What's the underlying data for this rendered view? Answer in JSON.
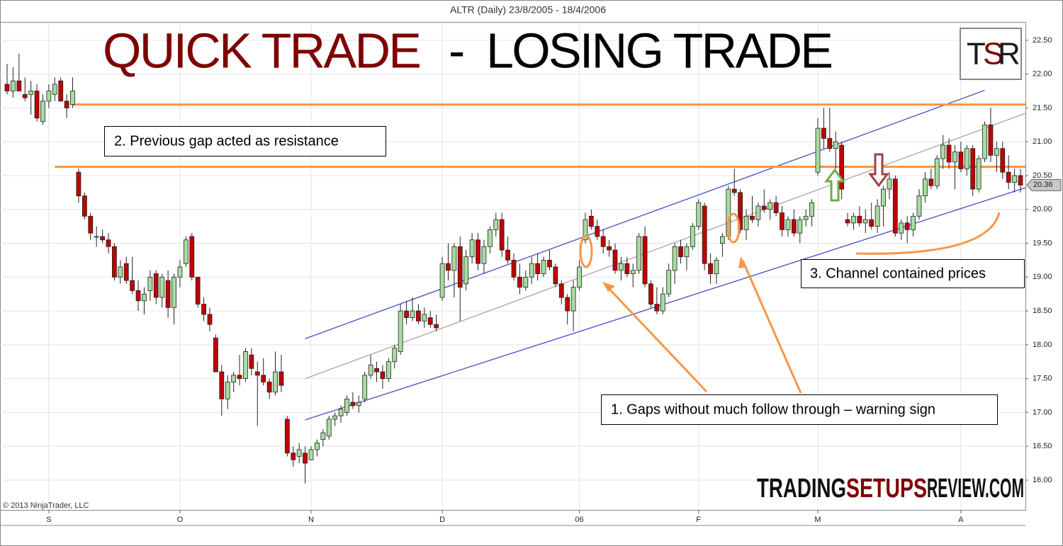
{
  "chart_data": {
    "type": "candlestick",
    "title": "ALTR (Daily)  23/8/2005 - 18/4/2006",
    "headline": {
      "left": "QUICK TRADE",
      "dash": "-",
      "right": "LOSING TRADE"
    },
    "logo": [
      "T",
      "S",
      "R"
    ],
    "watermark": [
      "TRADING",
      "SETUPS",
      "REVIEW.COM"
    ],
    "copyright": "© 2013 NinjaTrader, LLC",
    "annotations": [
      "2. Previous gap acted as resistance",
      "1. Gaps without much follow through – warning sign",
      "3. Channel contained prices"
    ],
    "categories": [
      null,
      null,
      null,
      null,
      null,
      null,
      null,
      "S",
      null,
      null,
      null,
      null,
      null,
      null,
      null,
      null,
      null,
      null,
      null,
      null,
      null,
      null,
      null,
      null,
      null,
      null,
      null,
      null,
      null,
      "O",
      null,
      null,
      null,
      null,
      null,
      null,
      null,
      null,
      null,
      null,
      null,
      null,
      null,
      null,
      null,
      null,
      null,
      null,
      null,
      null,
      null,
      "N",
      null,
      null,
      null,
      null,
      null,
      null,
      null,
      null,
      null,
      null,
      null,
      null,
      null,
      null,
      null,
      null,
      null,
      null,
      null,
      null,
      null,
      "D",
      null,
      null,
      null,
      null,
      null,
      null,
      null,
      null,
      null,
      null,
      null,
      null,
      null,
      null,
      null,
      null,
      null,
      null,
      null,
      null,
      null,
      null,
      "06",
      null,
      null,
      null,
      null,
      null,
      null,
      null,
      null,
      null,
      null,
      null,
      null,
      null,
      null,
      null,
      null,
      null,
      null,
      null,
      "F",
      null,
      null,
      null,
      null,
      null,
      null,
      null,
      null,
      null,
      null,
      null,
      null,
      null,
      null,
      null,
      null,
      null,
      null,
      null,
      "M",
      null,
      null,
      null,
      null,
      null,
      null,
      null,
      null,
      null,
      null,
      null,
      null,
      null,
      null,
      null,
      null,
      null,
      null,
      null,
      null,
      null,
      null,
      null,
      "A",
      null,
      null,
      null,
      null,
      null,
      null,
      null,
      null,
      null,
      null
    ],
    "ohlc": [
      [
        21.85,
        22.15,
        21.7,
        21.75
      ],
      [
        21.75,
        22.1,
        21.65,
        21.9
      ],
      [
        21.9,
        22.3,
        21.8,
        21.75
      ],
      [
        21.7,
        21.95,
        21.6,
        21.65
      ],
      [
        21.7,
        21.9,
        21.4,
        21.75
      ],
      [
        21.75,
        21.85,
        21.3,
        21.35
      ],
      [
        21.3,
        21.7,
        21.25,
        21.6
      ],
      [
        21.6,
        21.85,
        21.5,
        21.75
      ],
      [
        21.7,
        21.95,
        21.6,
        21.85
      ],
      [
        21.9,
        21.95,
        21.6,
        21.6
      ],
      [
        21.6,
        21.7,
        21.35,
        21.5
      ],
      [
        21.55,
        21.95,
        21.5,
        21.75
      ],
      [
        20.55,
        20.6,
        20.1,
        20.2
      ],
      [
        20.2,
        20.25,
        19.85,
        19.9
      ],
      [
        19.9,
        19.95,
        19.55,
        19.65
      ],
      [
        19.6,
        19.75,
        19.45,
        19.6
      ],
      [
        19.6,
        19.7,
        19.5,
        19.55
      ],
      [
        19.55,
        19.65,
        19.35,
        19.45
      ],
      [
        19.45,
        19.5,
        18.95,
        19.0
      ],
      [
        19.0,
        19.25,
        18.9,
        19.15
      ],
      [
        19.2,
        19.3,
        18.9,
        18.95
      ],
      [
        18.95,
        19.3,
        18.75,
        18.8
      ],
      [
        18.8,
        18.95,
        18.5,
        18.65
      ],
      [
        18.65,
        18.85,
        18.45,
        18.75
      ],
      [
        18.8,
        19.1,
        18.65,
        19.0
      ],
      [
        19.05,
        19.1,
        18.6,
        18.7
      ],
      [
        18.7,
        19.05,
        18.55,
        19.0
      ],
      [
        18.95,
        19.1,
        18.4,
        18.55
      ],
      [
        18.55,
        19.05,
        18.3,
        19.0
      ],
      [
        19.0,
        19.25,
        18.85,
        19.15
      ],
      [
        19.2,
        19.6,
        19.15,
        19.55
      ],
      [
        19.6,
        19.65,
        18.95,
        19.0
      ],
      [
        19.0,
        19.0,
        18.55,
        18.6
      ],
      [
        18.6,
        18.7,
        18.35,
        18.45
      ],
      [
        18.45,
        18.55,
        18.2,
        18.3
      ],
      [
        18.1,
        18.15,
        17.6,
        17.6
      ],
      [
        17.6,
        17.7,
        16.95,
        17.2
      ],
      [
        17.2,
        17.55,
        17.05,
        17.45
      ],
      [
        17.45,
        17.6,
        17.3,
        17.55
      ],
      [
        17.55,
        17.85,
        17.4,
        17.5
      ],
      [
        17.5,
        17.95,
        17.45,
        17.9
      ],
      [
        17.85,
        17.95,
        17.55,
        17.65
      ],
      [
        17.6,
        17.75,
        16.8,
        17.55
      ],
      [
        17.55,
        17.8,
        17.4,
        17.45
      ],
      [
        17.45,
        17.5,
        17.2,
        17.3
      ],
      [
        17.3,
        17.9,
        17.25,
        17.6
      ],
      [
        17.6,
        17.85,
        17.3,
        17.4
      ],
      [
        16.9,
        16.95,
        16.35,
        16.4
      ],
      [
        16.4,
        16.5,
        16.2,
        16.3
      ],
      [
        16.35,
        16.55,
        16.25,
        16.45
      ],
      [
        16.4,
        16.5,
        15.95,
        16.25
      ],
      [
        16.3,
        16.5,
        16.3,
        16.45
      ],
      [
        16.45,
        16.6,
        16.35,
        16.55
      ],
      [
        16.6,
        16.75,
        16.5,
        16.7
      ],
      [
        16.65,
        16.95,
        16.6,
        16.9
      ],
      [
        16.9,
        17.0,
        16.8,
        16.95
      ],
      [
        16.95,
        17.1,
        16.85,
        17.05
      ],
      [
        17.0,
        17.25,
        16.95,
        17.2
      ],
      [
        17.15,
        17.3,
        17.05,
        17.1
      ],
      [
        17.1,
        17.25,
        17.0,
        17.15
      ],
      [
        17.2,
        17.6,
        17.15,
        17.55
      ],
      [
        17.55,
        17.85,
        17.5,
        17.7
      ],
      [
        17.65,
        17.75,
        17.45,
        17.6
      ],
      [
        17.6,
        17.7,
        17.35,
        17.5
      ],
      [
        17.5,
        17.8,
        17.45,
        17.75
      ],
      [
        17.75,
        18.0,
        17.65,
        17.95
      ],
      [
        17.9,
        18.6,
        17.85,
        18.5
      ],
      [
        18.5,
        18.65,
        18.3,
        18.4
      ],
      [
        18.4,
        18.7,
        18.35,
        18.5
      ],
      [
        18.5,
        18.6,
        18.3,
        18.35
      ],
      [
        18.35,
        18.55,
        18.25,
        18.45
      ],
      [
        18.4,
        18.5,
        18.25,
        18.3
      ],
      [
        18.3,
        18.45,
        18.2,
        18.25
      ],
      [
        18.7,
        19.3,
        18.65,
        19.2
      ],
      [
        19.2,
        19.5,
        18.95,
        19.1
      ],
      [
        19.1,
        19.5,
        18.7,
        19.45
      ],
      [
        19.45,
        19.6,
        18.35,
        18.85
      ],
      [
        18.9,
        19.4,
        18.8,
        19.3
      ],
      [
        19.3,
        19.65,
        19.2,
        19.55
      ],
      [
        19.55,
        19.65,
        19.1,
        19.2
      ],
      [
        19.2,
        19.55,
        19.05,
        19.45
      ],
      [
        19.45,
        19.75,
        19.35,
        19.7
      ],
      [
        19.7,
        19.95,
        19.6,
        19.85
      ],
      [
        19.85,
        19.95,
        19.3,
        19.4
      ],
      [
        19.4,
        19.6,
        19.2,
        19.25
      ],
      [
        19.25,
        19.35,
        18.95,
        19.0
      ],
      [
        19.0,
        19.2,
        18.75,
        18.85
      ],
      [
        18.85,
        19.1,
        18.8,
        19.0
      ],
      [
        19.0,
        19.3,
        18.9,
        19.2
      ],
      [
        19.2,
        19.35,
        18.95,
        19.05
      ],
      [
        19.05,
        19.3,
        19.0,
        19.25
      ],
      [
        19.25,
        19.4,
        19.1,
        19.15
      ],
      [
        19.15,
        19.2,
        18.85,
        18.9
      ],
      [
        18.9,
        18.95,
        18.6,
        18.7
      ],
      [
        18.7,
        18.75,
        18.3,
        18.5
      ],
      [
        18.5,
        18.95,
        18.2,
        18.85
      ],
      [
        18.85,
        19.25,
        18.8,
        19.15
      ],
      [
        19.55,
        19.95,
        19.5,
        19.85
      ],
      [
        19.9,
        20.0,
        19.7,
        19.75
      ],
      [
        19.75,
        19.85,
        19.55,
        19.6
      ],
      [
        19.6,
        19.7,
        19.35,
        19.45
      ],
      [
        19.45,
        19.55,
        19.3,
        19.4
      ],
      [
        19.4,
        19.5,
        19.05,
        19.1
      ],
      [
        19.1,
        19.3,
        18.95,
        19.2
      ],
      [
        19.2,
        19.3,
        19.0,
        19.05
      ],
      [
        19.05,
        19.2,
        18.85,
        19.1
      ],
      [
        19.1,
        19.65,
        19.05,
        19.6
      ],
      [
        19.6,
        19.75,
        18.85,
        18.9
      ],
      [
        18.9,
        18.95,
        18.55,
        18.6
      ],
      [
        18.6,
        18.85,
        18.45,
        18.5
      ],
      [
        18.5,
        18.85,
        18.45,
        18.75
      ],
      [
        18.75,
        19.2,
        18.7,
        19.1
      ],
      [
        19.1,
        19.5,
        18.9,
        19.45
      ],
      [
        19.45,
        19.55,
        19.2,
        19.3
      ],
      [
        19.3,
        19.5,
        19.1,
        19.45
      ],
      [
        19.45,
        19.8,
        19.4,
        19.75
      ],
      [
        19.75,
        20.15,
        19.7,
        20.1
      ],
      [
        20.05,
        20.1,
        19.1,
        19.2
      ],
      [
        19.2,
        19.35,
        18.9,
        19.05
      ],
      [
        19.05,
        19.3,
        18.9,
        19.25
      ],
      [
        19.5,
        19.65,
        19.3,
        19.6
      ],
      [
        19.6,
        20.35,
        19.55,
        20.3
      ],
      [
        20.3,
        20.6,
        20.2,
        20.25
      ],
      [
        20.25,
        20.3,
        19.65,
        19.7
      ],
      [
        19.7,
        20.0,
        19.55,
        19.9
      ],
      [
        19.9,
        20.2,
        19.8,
        19.85
      ],
      [
        19.85,
        20.1,
        19.75,
        20.05
      ],
      [
        20.05,
        20.3,
        19.95,
        20.0
      ],
      [
        20.0,
        20.15,
        19.85,
        20.1
      ],
      [
        20.1,
        20.2,
        19.9,
        19.95
      ],
      [
        19.95,
        20.05,
        19.6,
        19.7
      ],
      [
        19.7,
        19.9,
        19.6,
        19.85
      ],
      [
        19.85,
        20.0,
        19.6,
        19.65
      ],
      [
        19.65,
        19.9,
        19.5,
        19.85
      ],
      [
        19.85,
        20.0,
        19.75,
        19.9
      ],
      [
        19.9,
        20.15,
        19.75,
        20.1
      ],
      [
        20.55,
        21.35,
        20.5,
        21.2
      ],
      [
        21.2,
        21.5,
        20.9,
        21.05
      ],
      [
        21.05,
        21.5,
        20.85,
        20.9
      ],
      [
        20.9,
        21.15,
        20.6,
        21.0
      ],
      [
        20.95,
        21.0,
        20.15,
        20.3
      ],
      [
        19.85,
        19.95,
        19.75,
        19.8
      ],
      [
        19.8,
        19.95,
        19.7,
        19.9
      ],
      [
        19.9,
        20.05,
        19.75,
        19.8
      ],
      [
        19.8,
        20.0,
        19.65,
        19.85
      ],
      [
        19.85,
        20.1,
        19.7,
        19.75
      ],
      [
        19.75,
        20.15,
        19.65,
        20.05
      ],
      [
        20.05,
        20.35,
        19.75,
        20.3
      ],
      [
        20.3,
        20.55,
        20.15,
        20.45
      ],
      [
        20.45,
        20.5,
        19.6,
        19.65
      ],
      [
        19.65,
        19.85,
        19.55,
        19.8
      ],
      [
        19.8,
        19.9,
        19.5,
        19.7
      ],
      [
        19.7,
        19.95,
        19.6,
        19.9
      ],
      [
        19.9,
        20.3,
        19.85,
        20.2
      ],
      [
        20.2,
        20.55,
        20.1,
        20.45
      ],
      [
        20.45,
        20.6,
        20.3,
        20.35
      ],
      [
        20.35,
        20.8,
        20.3,
        20.75
      ],
      [
        20.75,
        21.1,
        20.6,
        20.95
      ],
      [
        20.95,
        21.05,
        20.6,
        20.7
      ],
      [
        20.7,
        20.95,
        20.3,
        20.85
      ],
      [
        20.85,
        21.0,
        20.55,
        20.6
      ],
      [
        20.6,
        20.95,
        20.5,
        20.9
      ],
      [
        20.9,
        20.95,
        20.2,
        20.3
      ],
      [
        20.3,
        20.8,
        20.25,
        20.75
      ],
      [
        20.75,
        21.3,
        20.7,
        21.25
      ],
      [
        21.25,
        21.5,
        20.7,
        20.8
      ],
      [
        20.8,
        21.0,
        20.55,
        20.9
      ],
      [
        20.9,
        21.0,
        20.45,
        20.55
      ],
      [
        20.55,
        20.8,
        20.3,
        20.4
      ],
      [
        20.4,
        20.6,
        20.25,
        20.5
      ],
      [
        20.5,
        20.6,
        20.25,
        20.36
      ]
    ],
    "up_color": "#a8dca0",
    "down_color": "#c00000",
    "ylim": [
      15.56,
      22.76
    ],
    "yticks": [
      {
        "value": 16,
        "label": "16.00"
      },
      {
        "value": 16.5,
        "label": "16.50"
      },
      {
        "value": 17,
        "label": "17.00"
      },
      {
        "value": 17.5,
        "label": "17.50"
      },
      {
        "value": 18,
        "label": "18.00"
      },
      {
        "value": 18.5,
        "label": "18.50"
      },
      {
        "value": 19,
        "label": "19.00"
      },
      {
        "value": 19.5,
        "label": "19.50"
      },
      {
        "value": 20,
        "label": "20.00"
      },
      {
        "value": 20.5,
        "label": "20.50"
      },
      {
        "value": 21,
        "label": "21.00"
      },
      {
        "value": 21.5,
        "label": "21.50"
      },
      {
        "value": 22,
        "label": "22.00"
      },
      {
        "value": 22.5,
        "label": "22.50"
      }
    ],
    "grid": true,
    "levels": [
      {
        "value": 21.55,
        "start": 11
      },
      {
        "value": 20.63,
        "start": 8
      }
    ],
    "level_color": "#f79646",
    "channel": [
      {
        "from": [
          50,
          18.09
        ],
        "to": [
          164,
          21.76
        ],
        "color": "#4a4acc"
      },
      {
        "from": [
          50,
          17.5
        ],
        "to": [
          171,
          21.42
        ],
        "color": "#a6a6a6"
      },
      {
        "from": [
          50,
          16.89
        ],
        "to": [
          171,
          20.32
        ],
        "color": "#4a4acc"
      }
    ]
  }
}
